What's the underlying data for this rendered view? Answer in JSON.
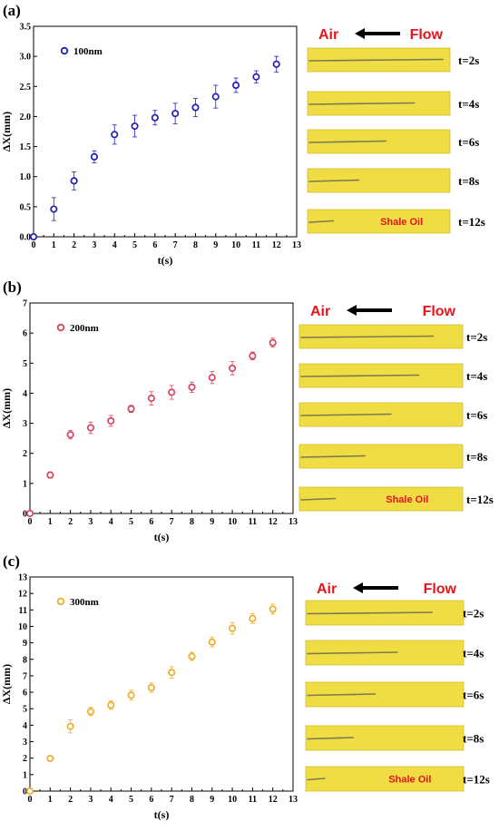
{
  "colors": {
    "p100": "#1f1fb8",
    "p200": "#d9435e",
    "p300": "#eeae2a",
    "strip": "#f0dc43",
    "strip_edge": "#d1bd2a",
    "label_red": "#e8141b"
  },
  "legend_marker_icon": "open-circle-marker",
  "arrow_icon": "left-arrow-icon",
  "chart_data": [
    {
      "type": "scatter",
      "panel_label": "(a)",
      "title": "",
      "xlabel": "t(s)",
      "ylabel": "ΔX(mm)",
      "xlim": [
        0,
        13
      ],
      "ylim": [
        0,
        3.5
      ],
      "xticks": [
        "0",
        "1",
        "2",
        "3",
        "4",
        "5",
        "6",
        "7",
        "8",
        "9",
        "10",
        "11",
        "12",
        "13"
      ],
      "yticks": [
        "0.0",
        "0.5",
        "1.0",
        "1.5",
        "2.0",
        "2.5",
        "3.0",
        "3.5"
      ],
      "grid": false,
      "legend_position": "top-left",
      "series": [
        {
          "name": "100nm",
          "x": [
            0,
            1,
            2,
            3,
            4,
            5,
            6,
            7,
            8,
            9,
            10,
            11,
            12
          ],
          "y": [
            0.0,
            0.46,
            0.93,
            1.33,
            1.7,
            1.84,
            1.98,
            2.05,
            2.15,
            2.33,
            2.52,
            2.66,
            2.87
          ],
          "err": [
            0.02,
            0.19,
            0.15,
            0.1,
            0.16,
            0.18,
            0.12,
            0.17,
            0.15,
            0.19,
            0.12,
            0.1,
            0.13
          ]
        }
      ],
      "image_strip": {
        "direction_left_label": "Air",
        "direction_right_label": "Flow",
        "fluid_label": "Shale Oil",
        "time_labels": [
          "t=2s",
          "t=4s",
          "t=6s",
          "t=8s",
          "t=12s"
        ],
        "front_position_fraction": [
          0.95,
          0.75,
          0.55,
          0.36,
          0.18
        ]
      }
    },
    {
      "type": "scatter",
      "panel_label": "(b)",
      "title": "",
      "xlabel": "t(s)",
      "ylabel": "ΔX(mm)",
      "xlim": [
        0,
        13
      ],
      "ylim": [
        0,
        7
      ],
      "xticks": [
        "0",
        "1",
        "2",
        "3",
        "4",
        "5",
        "6",
        "7",
        "8",
        "9",
        "10",
        "11",
        "12",
        "13"
      ],
      "yticks": [
        "0",
        "1",
        "2",
        "3",
        "4",
        "5",
        "6",
        "7"
      ],
      "grid": false,
      "legend_position": "top-left",
      "series": [
        {
          "name": "200nm",
          "x": [
            0,
            1,
            2,
            3,
            4,
            5,
            6,
            7,
            8,
            9,
            10,
            11,
            12
          ],
          "y": [
            0.0,
            1.28,
            2.62,
            2.85,
            3.08,
            3.48,
            3.83,
            4.03,
            4.2,
            4.52,
            4.83,
            5.24,
            5.68
          ],
          "err": [
            0.03,
            0.1,
            0.14,
            0.19,
            0.18,
            0.12,
            0.22,
            0.23,
            0.17,
            0.2,
            0.22,
            0.13,
            0.15
          ]
        }
      ],
      "image_strip": {
        "direction_left_label": "Air",
        "direction_right_label": "Flow",
        "fluid_label": "Shale Oil",
        "time_labels": [
          "t=2s",
          "t=4s",
          "t=6s",
          "t=8s",
          "t=12s"
        ],
        "front_position_fraction": [
          0.82,
          0.73,
          0.56,
          0.4,
          0.22
        ]
      }
    },
    {
      "type": "scatter",
      "panel_label": "(c)",
      "title": "",
      "xlabel": "t(s)",
      "ylabel": "ΔX(mm)",
      "xlim": [
        0,
        13
      ],
      "ylim": [
        0,
        13
      ],
      "xticks": [
        "0",
        "1",
        "2",
        "3",
        "4",
        "5",
        "6",
        "7",
        "8",
        "9",
        "10",
        "11",
        "12",
        "13"
      ],
      "yticks": [
        "0",
        "1",
        "2",
        "3",
        "4",
        "5",
        "6",
        "7",
        "8",
        "9",
        "10",
        "11",
        "12",
        "13"
      ],
      "grid": false,
      "legend_position": "top-left",
      "series": [
        {
          "name": "300nm",
          "x": [
            0,
            1,
            2,
            3,
            4,
            5,
            6,
            7,
            8,
            9,
            10,
            11,
            12
          ],
          "y": [
            0.0,
            1.98,
            3.93,
            4.83,
            5.22,
            5.82,
            6.28,
            7.2,
            8.18,
            9.05,
            9.88,
            10.48,
            11.05
          ],
          "err": [
            0.05,
            0.15,
            0.4,
            0.25,
            0.25,
            0.3,
            0.28,
            0.35,
            0.25,
            0.3,
            0.35,
            0.3,
            0.3
          ]
        }
      ],
      "image_strip": {
        "direction_left_label": "Air",
        "direction_right_label": "Flow",
        "fluid_label": "Shale Oil",
        "time_labels": [
          "t=2s",
          "t=4s",
          "t=6s",
          "t=8s",
          "t=12s"
        ],
        "front_position_fraction": [
          0.8,
          0.58,
          0.44,
          0.3,
          0.12
        ]
      }
    }
  ]
}
